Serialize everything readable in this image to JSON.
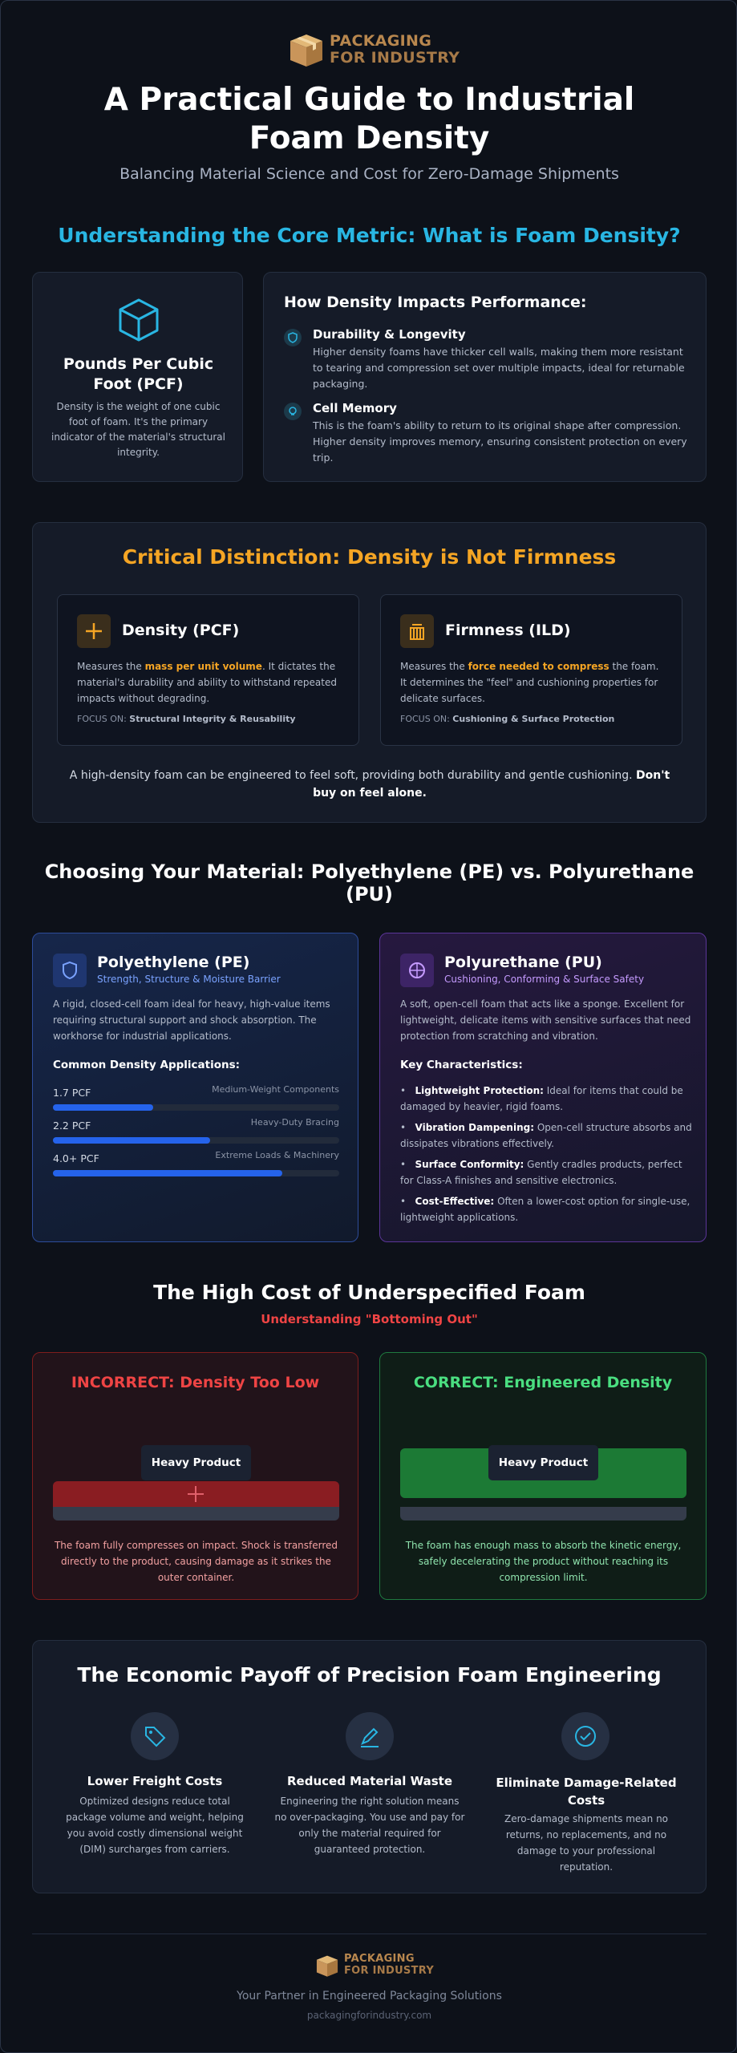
{
  "header": {
    "logo_line1": "PACKAGING",
    "logo_line2": "FOR INDUSTRY",
    "title": "A Practical Guide to Industrial Foam Density",
    "subtitle": "Balancing Material Science and Cost for Zero-Damage Shipments"
  },
  "core_metric": {
    "heading": "Understanding the Core Metric: What is Foam Density?",
    "pcf_card": {
      "title": "Pounds Per Cubic Foot (PCF)",
      "text": "Density is the weight of one cubic foot of foam. It's the primary indicator of the material's structural integrity."
    },
    "performance": {
      "title": "How Density Impacts Performance:",
      "items": [
        {
          "title": "Durability & Longevity",
          "text": "Higher density foams have thicker cell walls, making them more resistant to tearing and compression set over multiple impacts, ideal for returnable packaging."
        },
        {
          "title": "Cell Memory",
          "text": "This is the foam's ability to return to its original shape after compression. Higher density improves memory, ensuring consistent protection on every trip."
        }
      ]
    }
  },
  "distinction": {
    "heading": "Critical Distinction: Density is Not Firmness",
    "cards": [
      {
        "title": "Density (PCF)",
        "text_before": "Measures the ",
        "highlight": "mass per unit volume",
        "text_after": ". It dictates the material's durability and ability to withstand repeated impacts without degrading.",
        "focus_label": "FOCUS ON:",
        "focus": "Structural Integrity & Reusability"
      },
      {
        "title": "Firmness (ILD)",
        "text_before": "Measures the ",
        "highlight": "force needed to compress",
        "text_after": " the foam. It determines the \"feel\" and cushioning properties for delicate surfaces.",
        "focus_label": "FOCUS ON:",
        "focus": "Cushioning & Surface Protection"
      }
    ],
    "note": "A high-density foam can be engineered to feel soft, providing both durability and gentle cushioning.",
    "note_bold": "Don't buy on feel alone."
  },
  "materials": {
    "heading": "Choosing Your Material: Polyethylene (PE) vs. Polyurethane (PU)",
    "pe": {
      "title": "Polyethylene (PE)",
      "subtitle": "Strength, Structure & Moisture Barrier",
      "text": "A rigid, closed-cell foam ideal for heavy, high-value items requiring structural support and shock absorption. The workhorse for industrial applications.",
      "list_title": "Common Density Applications:",
      "applications": [
        {
          "density": "1.7 PCF",
          "use": "Medium-Weight Components"
        },
        {
          "density": "2.2 PCF",
          "use": "Heavy-Duty Bracing"
        },
        {
          "density": "4.0+ PCF",
          "use": "Extreme Loads & Machinery"
        }
      ]
    },
    "pu": {
      "title": "Polyurethane (PU)",
      "subtitle": "Cushioning, Conforming & Surface Safety",
      "text": "A soft, open-cell foam that acts like a sponge. Excellent for lightweight, delicate items with sensitive surfaces that need protection from scratching and vibration.",
      "list_title": "Key Characteristics:",
      "items": [
        {
          "title": "Lightweight Protection:",
          "text": "Ideal for items that could be damaged by heavier, rigid foams."
        },
        {
          "title": "Vibration Dampening:",
          "text": "Open-cell structure absorbs and dissipates vibrations effectively."
        },
        {
          "title": "Surface Conformity:",
          "text": "Gently cradles products, perfect for Class-A finishes and sensitive electronics."
        },
        {
          "title": "Cost-Effective:",
          "text": "Often a lower-cost option for single-use, lightweight applications."
        }
      ]
    }
  },
  "cost": {
    "heading": "The High Cost of Underspecified Foam",
    "subheading": "Understanding \"Bottoming Out\"",
    "incorrect": {
      "title": "INCORRECT: Density Too Low",
      "label": "Heavy Product",
      "text": "The foam fully compresses on impact. Shock is transferred directly to the product, causing damage as it strikes the outer container."
    },
    "correct": {
      "title": "CORRECT: Engineered Density",
      "label": "Heavy Product",
      "text": "The foam has enough mass to absorb the kinetic energy, safely decelerating the product without reaching its compression limit."
    }
  },
  "payoff": {
    "heading": "The Economic Payoff of Precision Foam Engineering",
    "items": [
      {
        "title": "Lower Freight Costs",
        "text": "Optimized designs reduce total package volume and weight, helping you avoid costly dimensional weight (DIM) surcharges from carriers."
      },
      {
        "title": "Reduced Material Waste",
        "text": "Engineering the right solution means no over-packaging. You use and pay for only the material required for guaranteed protection."
      },
      {
        "title": "Eliminate Damage-Related Costs",
        "text": "Zero-damage shipments mean no returns, no replacements, and no damage to your professional reputation."
      }
    ]
  },
  "footer": {
    "logo_line1": "PACKAGING",
    "logo_line2": "FOR INDUSTRY",
    "tagline": "Your Partner in Engineered Packaging Solutions",
    "url": "packagingforindustry.com"
  }
}
